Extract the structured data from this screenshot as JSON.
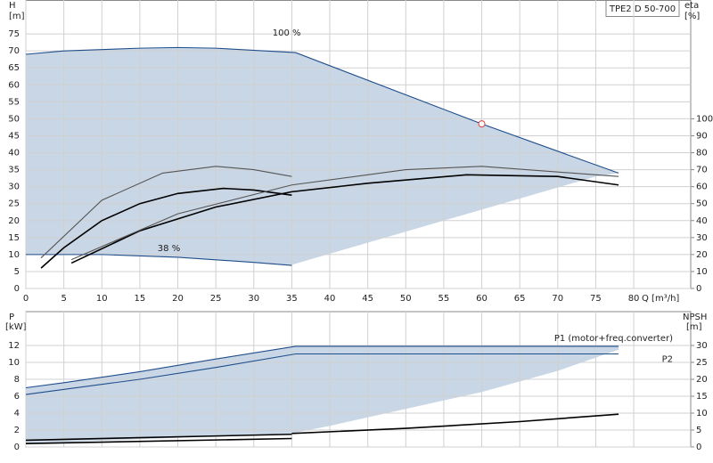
{
  "chart_data": [
    {
      "type": "line",
      "title": "TPE2 D 50-700",
      "x_label": "Q [m³/h]",
      "y_label": "H",
      "y_unit": "[m]",
      "y2_label": "eta",
      "y2_unit": "[%]",
      "xlim": [
        0,
        87.5
      ],
      "xticks": [
        0,
        5,
        10,
        15,
        20,
        25,
        30,
        35,
        40,
        45,
        50,
        55,
        60,
        65,
        70,
        75,
        80
      ],
      "ylim": [
        0,
        85
      ],
      "yticks": [
        0,
        5,
        10,
        15,
        20,
        25,
        30,
        35,
        40,
        45,
        50,
        55,
        60,
        65,
        70,
        75
      ],
      "y2lim": [
        0,
        170
      ],
      "y2ticks": [
        0,
        10,
        20,
        30,
        40,
        50,
        60,
        70,
        80,
        90,
        100
      ],
      "grid": true,
      "series": [
        {
          "name": "100 %",
          "color": "#1f4e8c",
          "x": [
            0,
            5,
            15,
            20,
            25,
            35.5,
            60,
            78
          ],
          "values": [
            69,
            70,
            70.8,
            71,
            70.8,
            69.5,
            48.5,
            34
          ]
        },
        {
          "name": "38 %",
          "color": "#1f4e8c",
          "x": [
            0,
            10,
            20,
            30,
            35
          ],
          "values": [
            10,
            10,
            9.2,
            7.7,
            6.8
          ]
        },
        {
          "color": "#000000",
          "axis": "y2",
          "x": [
            2,
            5,
            10,
            15,
            20,
            26,
            30,
            35
          ],
          "values": [
            12,
            24,
            40,
            50,
            56,
            59,
            58,
            55
          ]
        },
        {
          "color": "#000000",
          "axis": "y2",
          "x": [
            6,
            15,
            25,
            35,
            45,
            58,
            70,
            78
          ],
          "values": [
            15,
            34,
            48,
            57,
            62,
            67,
            66,
            61
          ]
        },
        {
          "color": "#555555",
          "axis": "y2",
          "x": [
            2,
            10,
            18,
            25,
            30,
            35
          ],
          "values": [
            18,
            52,
            68,
            72,
            70,
            66
          ]
        },
        {
          "color": "#555555",
          "axis": "y2",
          "x": [
            6,
            20,
            35,
            50,
            60,
            78
          ],
          "values": [
            17,
            44,
            61,
            70,
            72,
            66
          ]
        }
      ],
      "operating_range": {
        "x": [
          78,
          75,
          35
        ],
        "values": [
          34,
          33,
          7
        ]
      },
      "duty_point": {
        "x": 60,
        "y": 48.5,
        "color": "#e04040"
      }
    },
    {
      "type": "line",
      "y_label": "P",
      "y_unit": "[kW]",
      "y2_label": "NPSH",
      "y2_unit": "[m]",
      "xlim": [
        0,
        87.5
      ],
      "ylim": [
        0,
        16
      ],
      "yticks": [
        0,
        2,
        4,
        6,
        8,
        10,
        12
      ],
      "y2lim": [
        0,
        40
      ],
      "y2ticks": [
        0,
        5,
        10,
        15,
        20,
        25,
        30
      ],
      "grid": true,
      "series": [
        {
          "name": "P1 (motor+freq.converter)",
          "color": "#1f4e8c",
          "x": [
            0,
            5,
            15,
            25,
            35.5,
            78
          ],
          "values": [
            7,
            7.6,
            8.9,
            10.4,
            11.9,
            11.9
          ]
        },
        {
          "name": "P2",
          "color": "#1f4e8c",
          "x": [
            0,
            15,
            25,
            35.5,
            78
          ],
          "values": [
            6.2,
            8,
            9.4,
            11,
            11
          ]
        },
        {
          "color": "#000000",
          "axis": "y2",
          "x": [
            35,
            50,
            65,
            78
          ],
          "values": [
            4,
            5.5,
            7.5,
            9.7
          ]
        },
        {
          "color": "#000000",
          "x": [
            0,
            35
          ],
          "values": [
            0.8,
            1.5
          ]
        },
        {
          "color": "#000000",
          "x": [
            0,
            35
          ],
          "values": [
            0.4,
            1
          ]
        }
      ],
      "operating_range": {
        "x": [
          78,
          70,
          60,
          50,
          40,
          35,
          0
        ],
        "values": [
          11.5,
          9,
          6.5,
          4.5,
          2.5,
          1.6,
          0.4
        ]
      }
    }
  ]
}
